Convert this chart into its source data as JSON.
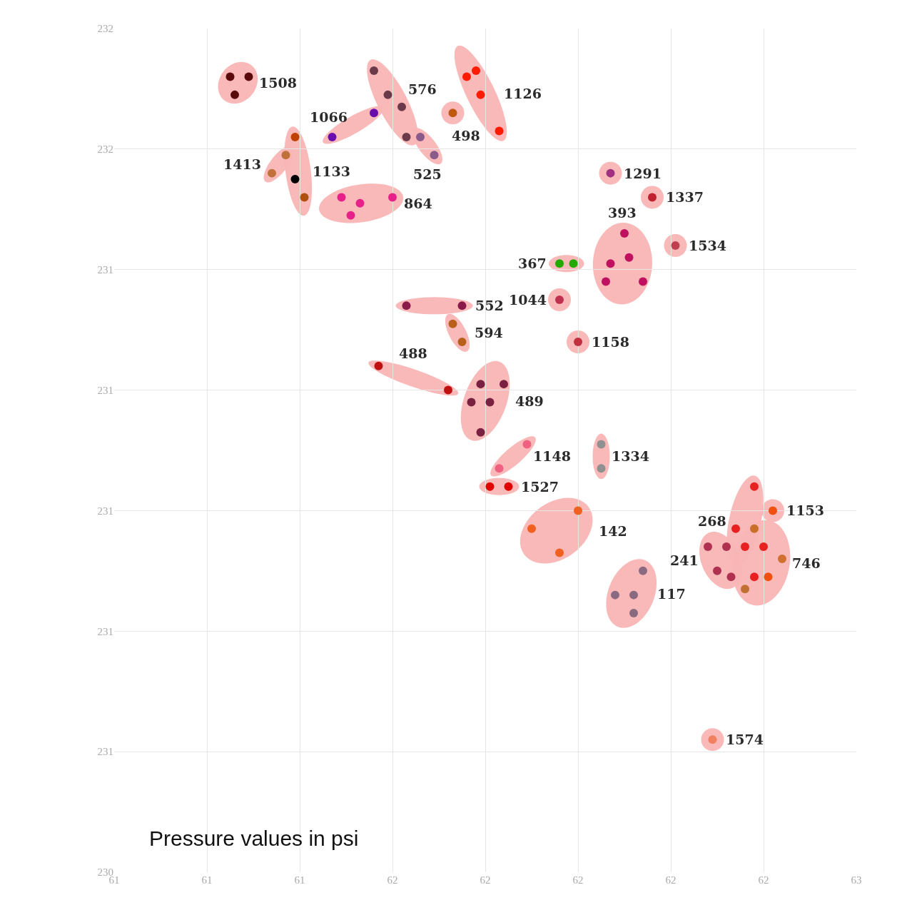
{
  "chart_data": {
    "type": "scatter",
    "xlim": [
      61.0,
      62.6
    ],
    "ylim": [
      230.4,
      231.8
    ],
    "xticks": [
      {
        "value": 61.0,
        "label": "61"
      },
      {
        "value": 61.2,
        "label": "61"
      },
      {
        "value": 61.4,
        "label": "61"
      },
      {
        "value": 61.6,
        "label": "62"
      },
      {
        "value": 61.8,
        "label": "62"
      },
      {
        "value": 62.0,
        "label": "62"
      },
      {
        "value": 62.2,
        "label": "62"
      },
      {
        "value": 62.4,
        "label": "62"
      },
      {
        "value": 62.6,
        "label": "63"
      }
    ],
    "yticks": [
      {
        "value": 230.4,
        "label": "230"
      },
      {
        "value": 230.6,
        "label": "231"
      },
      {
        "value": 230.8,
        "label": "231"
      },
      {
        "value": 231.0,
        "label": "231"
      },
      {
        "value": 231.2,
        "label": "231"
      },
      {
        "value": 231.4,
        "label": "231"
      },
      {
        "value": 231.6,
        "label": "232"
      },
      {
        "value": 231.8,
        "label": "232"
      }
    ],
    "grid": true,
    "marker": "circle",
    "series": [
      {
        "name": "1508",
        "x": [
          61.25,
          61.29,
          61.26
        ],
        "values": [
          231.72,
          231.72,
          231.69
        ],
        "colors": [
          "#5a0a0a",
          "#5a0a0a",
          "#5a0a0a"
        ]
      },
      {
        "name": "576",
        "x": [
          61.56,
          61.59,
          61.62,
          61.63
        ],
        "values": [
          231.73,
          231.69,
          231.67,
          231.62
        ],
        "colors": [
          "#6b3a4a",
          "#6b3a4a",
          "#6b3a4a",
          "#6b3a4a"
        ]
      },
      {
        "name": "1066",
        "x": [
          61.47,
          61.56
        ],
        "values": [
          231.62,
          231.66
        ],
        "colors": [
          "#6a0dad",
          "#6a0dad"
        ]
      },
      {
        "name": "498",
        "x": [
          61.73
        ],
        "values": [
          231.66
        ],
        "colors": [
          "#c0580e"
        ]
      },
      {
        "name": "1126",
        "x": [
          61.76,
          61.78,
          61.79,
          61.83
        ],
        "values": [
          231.72,
          231.73,
          231.69,
          231.63
        ],
        "colors": [
          "#ff1a00",
          "#ff1a00",
          "#ff1a00",
          "#ff1a00"
        ]
      },
      {
        "name": "1413",
        "x": [
          61.34,
          61.37
        ],
        "values": [
          231.56,
          231.59
        ],
        "colors": [
          "#c0703a",
          "#c0703a"
        ]
      },
      {
        "name": "1133",
        "x": [
          61.39,
          61.39,
          61.41
        ],
        "values": [
          231.62,
          231.55,
          231.52
        ],
        "colors": [
          "#c04000",
          "#000000",
          "#b05010"
        ]
      },
      {
        "name": "525",
        "x": [
          61.66,
          61.69
        ],
        "values": [
          231.62,
          231.59
        ],
        "colors": [
          "#8a5a8a",
          "#8a5a8a"
        ]
      },
      {
        "name": "864",
        "x": [
          61.49,
          61.53,
          61.6,
          61.51
        ],
        "values": [
          231.52,
          231.51,
          231.52,
          231.49
        ],
        "colors": [
          "#e8208a",
          "#e8208a",
          "#e8208a",
          "#e8208a"
        ]
      },
      {
        "name": "1291",
        "x": [
          62.07
        ],
        "values": [
          231.56
        ],
        "colors": [
          "#a03080"
        ]
      },
      {
        "name": "1337",
        "x": [
          62.16
        ],
        "values": [
          231.52
        ],
        "colors": [
          "#c02030"
        ]
      },
      {
        "name": "1534",
        "x": [
          62.21
        ],
        "values": [
          231.44
        ],
        "colors": [
          "#c04050"
        ]
      },
      {
        "name": "367",
        "x": [
          61.96,
          61.99
        ],
        "values": [
          231.41,
          231.41
        ],
        "colors": [
          "#22aa00",
          "#22aa00"
        ]
      },
      {
        "name": "393",
        "x": [
          62.1,
          62.07,
          62.11,
          62.06,
          62.14
        ],
        "values": [
          231.46,
          231.41,
          231.42,
          231.38,
          231.38
        ],
        "colors": [
          "#c01060",
          "#c01060",
          "#c01060",
          "#c01060",
          "#c01060"
        ]
      },
      {
        "name": "1044",
        "x": [
          61.96
        ],
        "values": [
          231.35
        ],
        "colors": [
          "#c03050"
        ]
      },
      {
        "name": "1158",
        "x": [
          62.0
        ],
        "values": [
          231.28
        ],
        "colors": [
          "#c03040"
        ]
      },
      {
        "name": "552",
        "x": [
          61.63,
          61.75
        ],
        "values": [
          231.34,
          231.34
        ],
        "colors": [
          "#8a1a4a",
          "#8a1a4a"
        ]
      },
      {
        "name": "594",
        "x": [
          61.73,
          61.75
        ],
        "values": [
          231.31,
          231.28
        ],
        "colors": [
          "#b8601a",
          "#b8601a"
        ]
      },
      {
        "name": "488",
        "x": [
          61.57,
          61.72
        ],
        "values": [
          231.24,
          231.2
        ],
        "colors": [
          "#c01010",
          "#c01010"
        ]
      },
      {
        "name": "489",
        "x": [
          61.79,
          61.84,
          61.77,
          61.81,
          61.79
        ],
        "values": [
          231.21,
          231.21,
          231.18,
          231.18,
          231.13
        ],
        "colors": [
          "#7a2040",
          "#7a2040",
          "#7a2040",
          "#7a2040",
          "#7a2040"
        ]
      },
      {
        "name": "1148",
        "x": [
          61.89,
          61.83
        ],
        "values": [
          231.11,
          231.07
        ],
        "colors": [
          "#f06080",
          "#f06080"
        ]
      },
      {
        "name": "1527",
        "x": [
          61.81,
          61.85
        ],
        "values": [
          231.04,
          231.04
        ],
        "colors": [
          "#e00000",
          "#e00000"
        ]
      },
      {
        "name": "1334",
        "x": [
          62.05,
          62.05
        ],
        "values": [
          231.11,
          231.07
        ],
        "colors": [
          "#909090",
          "#909090"
        ]
      },
      {
        "name": "142",
        "x": [
          62.0,
          61.9,
          61.96
        ],
        "values": [
          231.0,
          230.97,
          230.93
        ],
        "colors": [
          "#f06020",
          "#f06020",
          "#f06020"
        ]
      },
      {
        "name": "117",
        "x": [
          62.14,
          62.08,
          62.12,
          62.12
        ],
        "values": [
          230.9,
          230.86,
          230.86,
          230.83
        ],
        "colors": [
          "#8a6a80",
          "#8a6a80",
          "#8a6a80",
          "#8a6a80"
        ]
      },
      {
        "name": "268",
        "x": [
          62.38,
          62.34,
          62.36
        ],
        "values": [
          231.04,
          230.97,
          230.94
        ],
        "colors": [
          "#e82020",
          "#e82020",
          "#e82020"
        ]
      },
      {
        "name": "1153",
        "x": [
          62.42
        ],
        "values": [
          231.0
        ],
        "colors": [
          "#f05010"
        ]
      },
      {
        "name": "241",
        "x": [
          62.28,
          62.32,
          62.3,
          62.33
        ],
        "values": [
          230.94,
          230.94,
          230.9,
          230.89
        ],
        "colors": [
          "#b03050",
          "#b03050",
          "#b03050",
          "#b03050"
        ]
      },
      {
        "name": "746",
        "x": [
          62.38,
          62.4,
          62.44,
          62.41,
          62.38,
          62.36
        ],
        "values": [
          230.97,
          230.94,
          230.92,
          230.89,
          230.89,
          230.87
        ],
        "colors": [
          "#c8702a",
          "#e82020",
          "#d07030",
          "#f05010",
          "#e82020",
          "#c07030"
        ]
      },
      {
        "name": "1574",
        "x": [
          62.29
        ],
        "values": [
          230.62
        ],
        "colors": [
          "#f08060"
        ]
      }
    ],
    "annotations": [
      "Pressure values in psi"
    ]
  }
}
